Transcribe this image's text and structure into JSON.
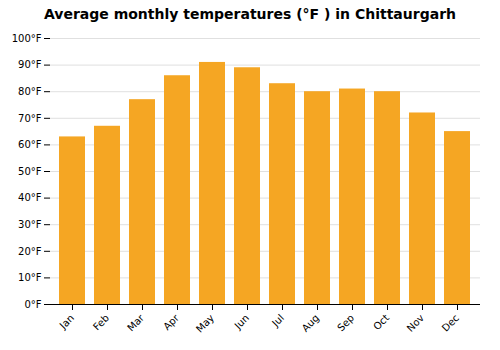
{
  "chart_data": {
    "type": "bar",
    "title": "Average monthly temperatures (°F ) in Chittaurgarh",
    "categories": [
      "Jan",
      "Feb",
      "Mar",
      "Apr",
      "May",
      "Jun",
      "Jul",
      "Aug",
      "Sep",
      "Oct",
      "Nov",
      "Dec"
    ],
    "values": [
      63,
      67,
      77,
      86,
      91,
      89,
      83,
      80,
      81,
      80,
      72,
      65
    ],
    "color": "#F5A623",
    "ylim": [
      0,
      100
    ],
    "yticks": [
      {
        "value": 0,
        "label": "0°F"
      },
      {
        "value": 10,
        "label": "10°F"
      },
      {
        "value": 20,
        "label": "20°F"
      },
      {
        "value": 30,
        "label": "30°F"
      },
      {
        "value": 40,
        "label": "40°F"
      },
      {
        "value": 50,
        "label": "50°F"
      },
      {
        "value": 60,
        "label": "60°F"
      },
      {
        "value": 70,
        "label": "70°F"
      },
      {
        "value": 80,
        "label": "80°F"
      },
      {
        "value": 90,
        "label": "90°F"
      },
      {
        "value": 100,
        "label": "100°F"
      }
    ],
    "grid": true
  }
}
